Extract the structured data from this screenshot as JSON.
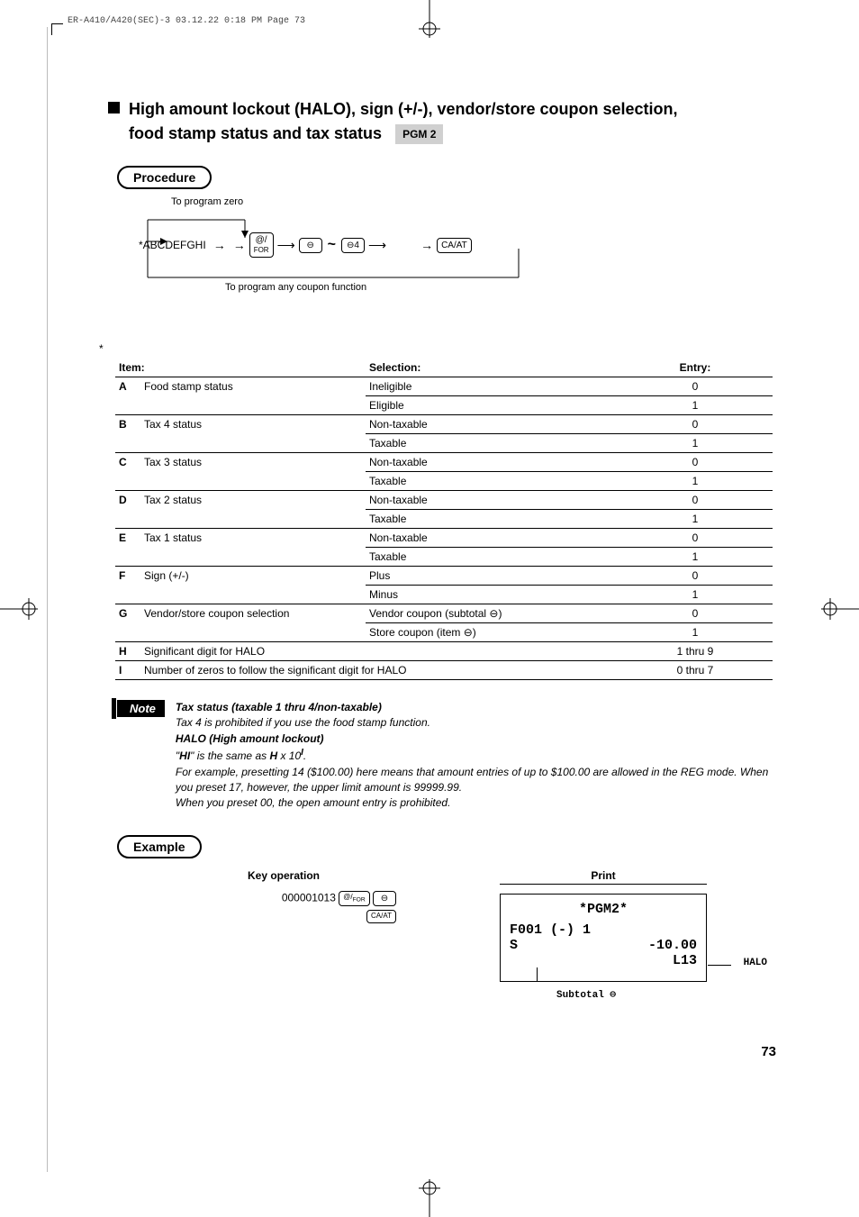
{
  "header_strip": "ER-A410/A420(SEC)-3  03.12.22 0:18 PM  Page 73",
  "title_line1": "High amount lockout (HALO), sign (+/-), vendor/store coupon selection,",
  "title_line2": "food stamp status and tax status",
  "pgm_tag": "PGM 2",
  "procedure_label": "Procedure",
  "diag_top": "To program zero",
  "diag_bottom": "To program any coupon function",
  "diag_center": "*ABCDEFGHI",
  "key_for_top": "@/",
  "key_for_bot": "FOR",
  "key_minus": "⊖",
  "key_minus4": "⊖4",
  "key_caat": "CA/AT",
  "table": {
    "star": "*",
    "head_item": "Item:",
    "head_sel": "Selection:",
    "head_entry": "Entry:",
    "rows": [
      {
        "l": "A",
        "item": "Food stamp status",
        "sel": "Ineligible",
        "e": "0",
        "sel2": "Eligible",
        "e2": "1"
      },
      {
        "l": "B",
        "item": "Tax 4 status",
        "sel": "Non-taxable",
        "e": "0",
        "sel2": "Taxable",
        "e2": "1"
      },
      {
        "l": "C",
        "item": "Tax 3 status",
        "sel": "Non-taxable",
        "e": "0",
        "sel2": "Taxable",
        "e2": "1"
      },
      {
        "l": "D",
        "item": "Tax 2 status",
        "sel": "Non-taxable",
        "e": "0",
        "sel2": "Taxable",
        "e2": "1"
      },
      {
        "l": "E",
        "item": "Tax 1 status",
        "sel": "Non-taxable",
        "e": "0",
        "sel2": "Taxable",
        "e2": "1"
      },
      {
        "l": "F",
        "item": "Sign (+/-)",
        "sel": "Plus",
        "e": "0",
        "sel2": "Minus",
        "e2": "1"
      },
      {
        "l": "G",
        "item": "Vendor/store coupon selection",
        "sel": "Vendor coupon (subtotal ⊖)",
        "e": "0",
        "sel2": "Store coupon (item ⊖)",
        "e2": "1"
      }
    ],
    "row_h": {
      "l": "H",
      "item": "Significant digit for HALO",
      "e": "1 thru 9"
    },
    "row_i": {
      "l": "I",
      "item": "Number of zeros to follow the significant digit for HALO",
      "e": "0 thru 7"
    }
  },
  "note_label": "Note",
  "note": {
    "l1": "Tax status (taxable 1 thru 4/non-taxable)",
    "l2": "Tax 4 is prohibited if you use the food stamp function.",
    "l3": "HALO (High amount lockout)",
    "l4a": "\"",
    "l4b": "HI",
    "l4c": "\" is the same as ",
    "l4d": "H",
    "l4e": " x 10",
    "l4f": "I",
    "l4g": ".",
    "l5": "For example, presetting 14 ($100.00) here means that amount entries of up to $100.00 are allowed in the REG mode.  When you preset 17, however, the upper limit amount is 99999.99.",
    "l6": "When you preset 00, the open amount entry is prohibited."
  },
  "example_label": "Example",
  "keyop_head": "Key operation",
  "print_head": "Print",
  "keyop_digits": "000001013",
  "receipt": {
    "title": "*PGM2*",
    "row1_left": "F001 (-) 1",
    "row2_left": "S",
    "row2_right": "-10.00",
    "row3_right": "L13"
  },
  "callout_halo": "HALO",
  "callout_sub": "Subtotal ⊖",
  "page_number": "73"
}
